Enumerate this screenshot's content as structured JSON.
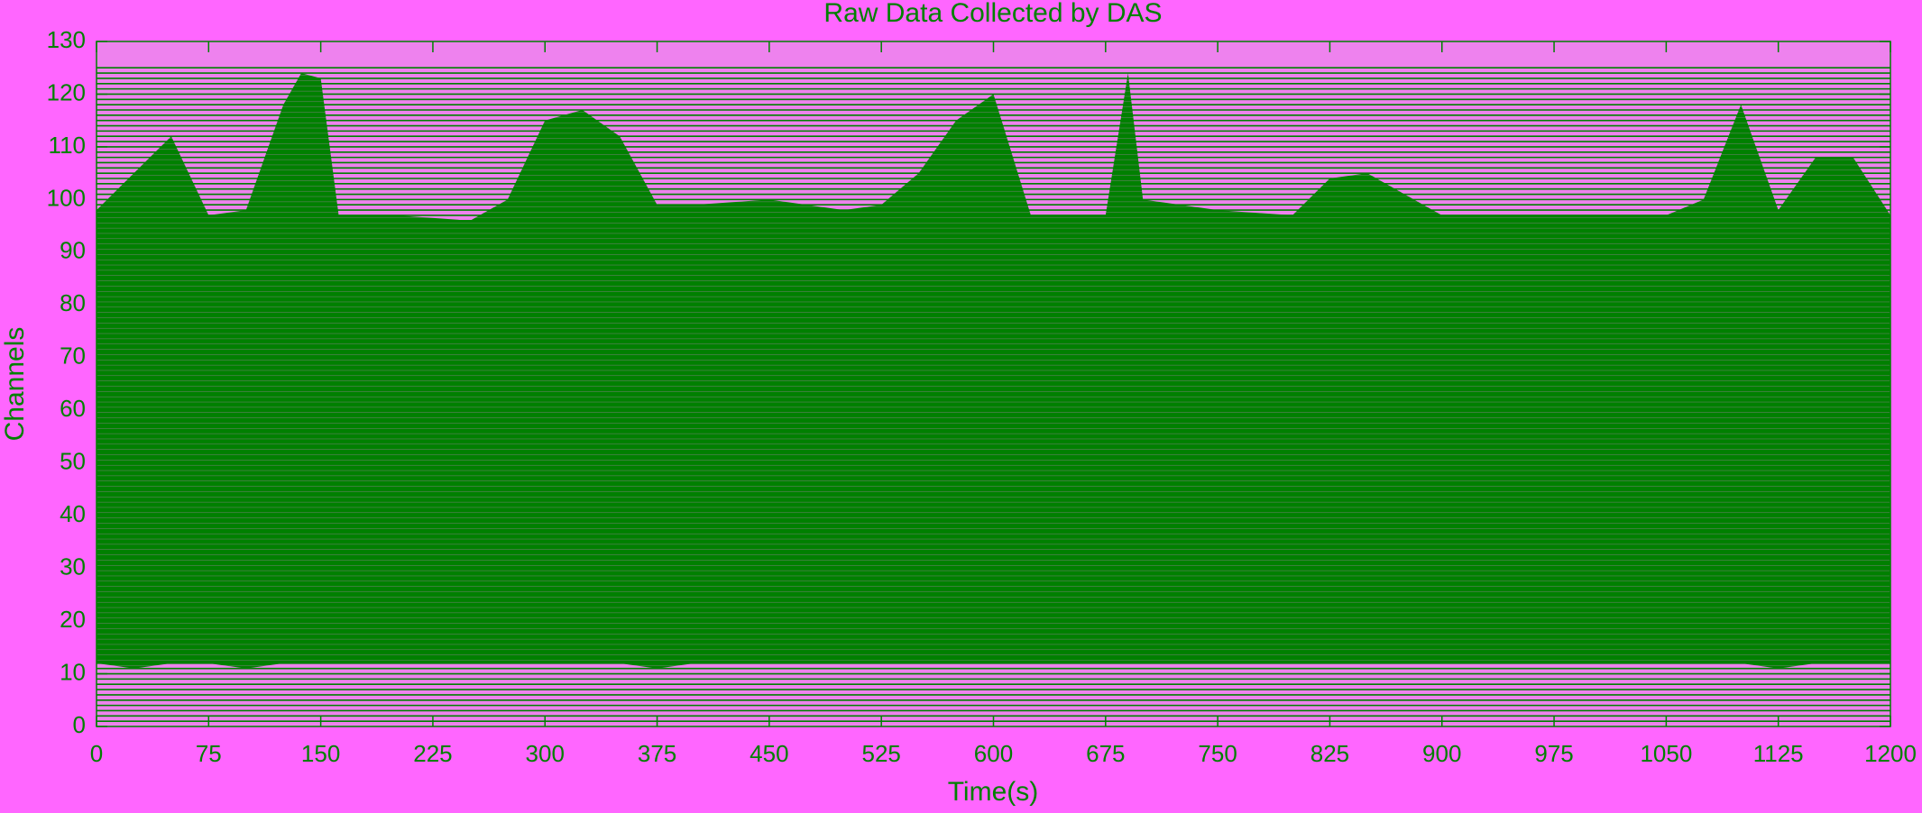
{
  "chart_data": {
    "type": "area",
    "title": "Raw Data Collected by DAS",
    "x_label": "Time(s)",
    "y_label": "Channels",
    "color": "#008000",
    "background": "#ee82ee",
    "channel_count": 125,
    "x": [
      0,
      25,
      50,
      75,
      100,
      125,
      137,
      150,
      162,
      200,
      250,
      275,
      300,
      325,
      350,
      375,
      400,
      450,
      500,
      525,
      550,
      575,
      600,
      625,
      675,
      690,
      700,
      750,
      800,
      825,
      850,
      900,
      950,
      1000,
      1050,
      1075,
      1100,
      1125,
      1150,
      1175,
      1200
    ],
    "values": [
      98,
      105,
      112,
      97,
      98,
      118,
      124,
      123,
      97,
      97,
      96,
      100,
      115,
      117,
      112,
      99,
      99,
      100,
      98,
      99,
      105,
      115,
      120,
      97,
      97,
      124,
      100,
      98,
      97,
      104,
      105,
      97,
      97,
      97,
      97,
      100,
      118,
      98,
      108,
      108,
      97
    ],
    "low_values": [
      12,
      11,
      12,
      12,
      11,
      12,
      12,
      12,
      12,
      12,
      12,
      12,
      12,
      12,
      12,
      11,
      12,
      12,
      12,
      12,
      12,
      12,
      12,
      12,
      12,
      12,
      12,
      12,
      12,
      12,
      12,
      12,
      12,
      12,
      12,
      12,
      12,
      11,
      12,
      12,
      12
    ],
    "xlim": [
      0,
      1200
    ],
    "xticks": [
      0,
      75,
      150,
      225,
      300,
      375,
      450,
      525,
      600,
      675,
      750,
      825,
      900,
      975,
      1050,
      1125,
      1200
    ],
    "ylim": [
      0,
      130
    ],
    "yticks": [
      0,
      10,
      20,
      30,
      40,
      50,
      60,
      70,
      80,
      90,
      100,
      110,
      120,
      130
    ]
  }
}
